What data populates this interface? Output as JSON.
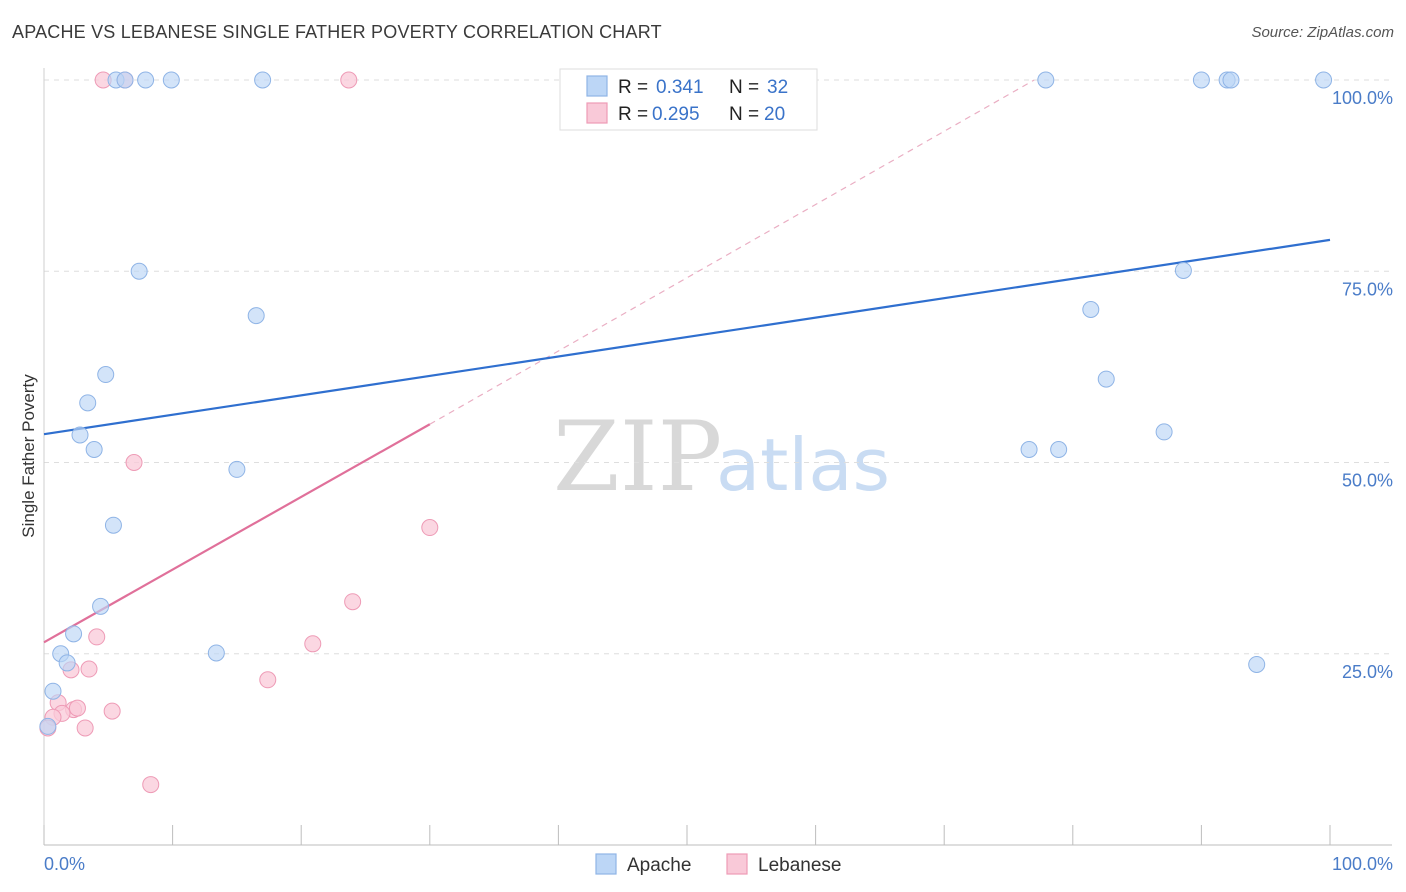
{
  "header": {
    "title": "APACHE VS LEBANESE SINGLE FATHER POVERTY CORRELATION CHART",
    "source": "Source: ZipAtlas.com"
  },
  "legend": {
    "apache": {
      "r_label": "R =",
      "r_value": "0.341",
      "n_label": "N =",
      "n_value": "32"
    },
    "lebanese": {
      "r_label": "R =",
      "r_value": "0.295",
      "n_label": "N =",
      "n_value": "20"
    }
  },
  "bottom_legend": {
    "apache": "Apache",
    "lebanese": "Lebanese"
  },
  "watermark": {
    "zip": "ZIP",
    "atlas": "atlas"
  },
  "chart_data": {
    "type": "scatter",
    "title": "APACHE VS LEBANESE SINGLE FATHER POVERTY CORRELATION CHART",
    "xlabel": "",
    "ylabel": "Single Father Poverty",
    "xlim": [
      0,
      100
    ],
    "ylim": [
      0,
      104
    ],
    "x_tick_labels": [
      "0.0%",
      "100.0%"
    ],
    "y_ticks": [
      25,
      50,
      75,
      100
    ],
    "y_tick_labels": [
      "25.0%",
      "50.0%",
      "75.0%",
      "100.0%"
    ],
    "grid": "horizontal dashed",
    "legend_placement": "top-center",
    "colors": {
      "apache_fill": "#bcd6f6",
      "apache_stroke": "#8fb4e6",
      "apache_line": "#2f6fcf",
      "lebanese_fill": "#f9c9d8",
      "lebanese_stroke": "#ee9bb6",
      "lebanese_line": "#e0709a"
    },
    "series": [
      {
        "name": "Apache",
        "points": [
          [
            5.6,
            100
          ],
          [
            6.3,
            100
          ],
          [
            7.9,
            100
          ],
          [
            9.9,
            100
          ],
          [
            17.0,
            100
          ],
          [
            77.9,
            100
          ],
          [
            90.0,
            100
          ],
          [
            92.0,
            100
          ],
          [
            92.3,
            100
          ],
          [
            99.5,
            100
          ],
          [
            7.4,
            75
          ],
          [
            16.5,
            69.2
          ],
          [
            4.8,
            61.5
          ],
          [
            3.4,
            57.8
          ],
          [
            2.8,
            53.6
          ],
          [
            3.9,
            51.7
          ],
          [
            15.0,
            49.1
          ],
          [
            5.4,
            41.8
          ],
          [
            4.4,
            31.2
          ],
          [
            2.3,
            27.6
          ],
          [
            1.3,
            25.0
          ],
          [
            1.8,
            23.8
          ],
          [
            13.4,
            25.1
          ],
          [
            0.7,
            20.1
          ],
          [
            0.3,
            15.5
          ],
          [
            81.4,
            70.0
          ],
          [
            82.6,
            60.9
          ],
          [
            88.6,
            75.1
          ],
          [
            87.1,
            54.0
          ],
          [
            76.6,
            51.7
          ],
          [
            78.9,
            51.7
          ],
          [
            94.3,
            23.6
          ]
        ],
        "trend": {
          "x": [
            0,
            100
          ],
          "y": [
            53.7,
            79.1
          ]
        }
      },
      {
        "name": "Lebanese",
        "points": [
          [
            4.6,
            100
          ],
          [
            6.3,
            100
          ],
          [
            23.7,
            100
          ],
          [
            7.0,
            50.0
          ],
          [
            30.0,
            41.5
          ],
          [
            24.0,
            31.8
          ],
          [
            20.9,
            26.3
          ],
          [
            4.1,
            27.2
          ],
          [
            2.1,
            22.9
          ],
          [
            3.5,
            23.0
          ],
          [
            17.4,
            21.6
          ],
          [
            1.1,
            18.6
          ],
          [
            2.3,
            17.7
          ],
          [
            2.6,
            17.9
          ],
          [
            5.3,
            17.5
          ],
          [
            1.4,
            17.2
          ],
          [
            0.7,
            16.7
          ],
          [
            0.3,
            15.3
          ],
          [
            3.2,
            15.3
          ],
          [
            8.3,
            7.9
          ]
        ],
        "trend": {
          "x": [
            0,
            30
          ],
          "y": [
            26.5,
            55.0
          ]
        },
        "trend_extension": {
          "x": [
            30,
            77
          ],
          "y": [
            55.0,
            100
          ]
        }
      }
    ]
  }
}
